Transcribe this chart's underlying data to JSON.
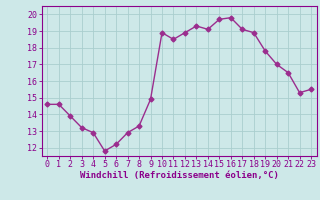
{
  "x": [
    0,
    1,
    2,
    3,
    4,
    5,
    6,
    7,
    8,
    9,
    10,
    11,
    12,
    13,
    14,
    15,
    16,
    17,
    18,
    19,
    20,
    21,
    22,
    23
  ],
  "y": [
    14.6,
    14.6,
    13.9,
    13.2,
    12.9,
    11.8,
    12.2,
    12.9,
    13.3,
    14.9,
    18.9,
    18.5,
    18.9,
    19.3,
    19.1,
    19.7,
    19.8,
    19.1,
    18.9,
    17.8,
    17.0,
    16.5,
    15.3,
    15.5
  ],
  "line_color": "#9b2d8e",
  "marker": "D",
  "marker_size": 2.5,
  "bg_color": "#cde8e8",
  "grid_color": "#aacece",
  "xlabel": "Windchill (Refroidissement éolien,°C)",
  "xlim": [
    -0.5,
    23.5
  ],
  "ylim": [
    11.5,
    20.5
  ],
  "yticks": [
    12,
    13,
    14,
    15,
    16,
    17,
    18,
    19,
    20
  ],
  "xticks": [
    0,
    1,
    2,
    3,
    4,
    5,
    6,
    7,
    8,
    9,
    10,
    11,
    12,
    13,
    14,
    15,
    16,
    17,
    18,
    19,
    20,
    21,
    22,
    23
  ],
  "tick_label_color": "#8b008b",
  "axis_color": "#8b008b",
  "font_size": 6.0,
  "xlabel_fontsize": 6.5,
  "linewidth": 1.0
}
